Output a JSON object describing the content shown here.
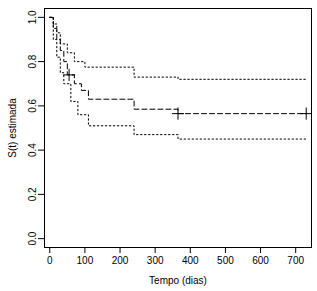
{
  "chart_data": {
    "type": "line",
    "xlabel": "Tempo (dias)",
    "ylabel": "S(t) estimada",
    "xlim": [
      -15,
      745
    ],
    "ylim": [
      -0.04,
      1.04
    ],
    "xticks": [
      0,
      100,
      200,
      300,
      400,
      500,
      600,
      700
    ],
    "yticks": [
      {
        "value": 0,
        "label": "0.0"
      },
      0.2,
      0.4,
      0.6,
      0.8,
      {
        "value": 1,
        "label": "1.0"
      }
    ],
    "grid": false,
    "series": [
      {
        "type": "step",
        "line_style": "dashed",
        "color": "#000000",
        "x": [
          0,
          10,
          20,
          30,
          40,
          50,
          70,
          90,
          110,
          240,
          365,
          730
        ],
        "values": [
          1.0,
          0.95,
          0.9,
          0.85,
          0.8,
          0.74,
          0.7,
          0.67,
          0.63,
          0.585,
          0.565,
          0.565
        ]
      },
      {
        "type": "step",
        "line_style": "dotted",
        "color": "#000000",
        "x": [
          0,
          10,
          20,
          30,
          50,
          70,
          100,
          240,
          365,
          730
        ],
        "values": [
          1.0,
          0.97,
          0.93,
          0.88,
          0.84,
          0.8,
          0.775,
          0.73,
          0.72,
          0.72
        ]
      },
      {
        "type": "step",
        "line_style": "dotted",
        "color": "#000000",
        "x": [
          0,
          10,
          20,
          30,
          40,
          60,
          80,
          110,
          240,
          365,
          730
        ],
        "values": [
          1.0,
          0.9,
          0.82,
          0.75,
          0.7,
          0.62,
          0.56,
          0.51,
          0.47,
          0.45,
          0.45
        ]
      },
      {
        "type": "scatter",
        "marker": "plus",
        "color": "#000000",
        "x": [
          55,
          365,
          730
        ],
        "values": [
          0.74,
          0.565,
          0.565
        ]
      }
    ]
  }
}
